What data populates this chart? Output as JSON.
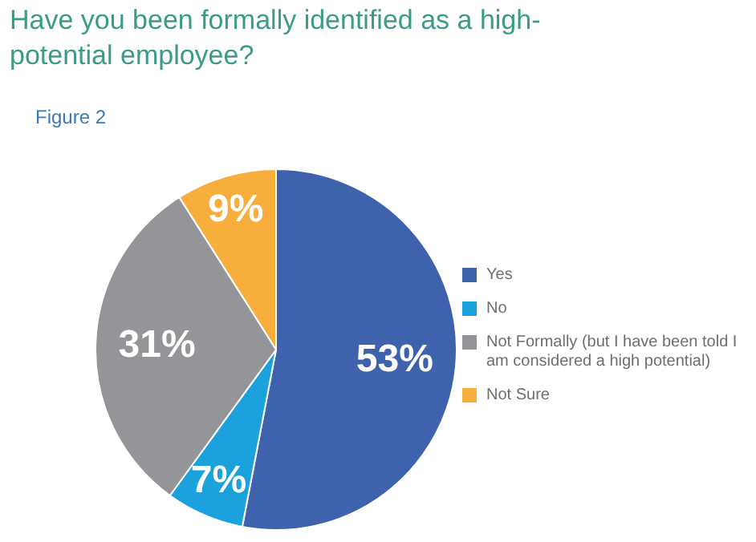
{
  "chart_data": {
    "type": "pie",
    "title": "Have you been formally identified as a high-potential employee?",
    "subtitle": "Figure 2",
    "categories": [
      "Yes",
      "No",
      "Not Formally (but I have been told I am considered a high potential)",
      "Not Sure"
    ],
    "values": [
      53,
      7,
      31,
      9
    ],
    "colors": [
      "#3f62ad",
      "#1ba1db",
      "#939598",
      "#f7ae3d"
    ],
    "value_labels": [
      "53%",
      "7%",
      "31%",
      "9%"
    ],
    "legend": "right"
  }
}
